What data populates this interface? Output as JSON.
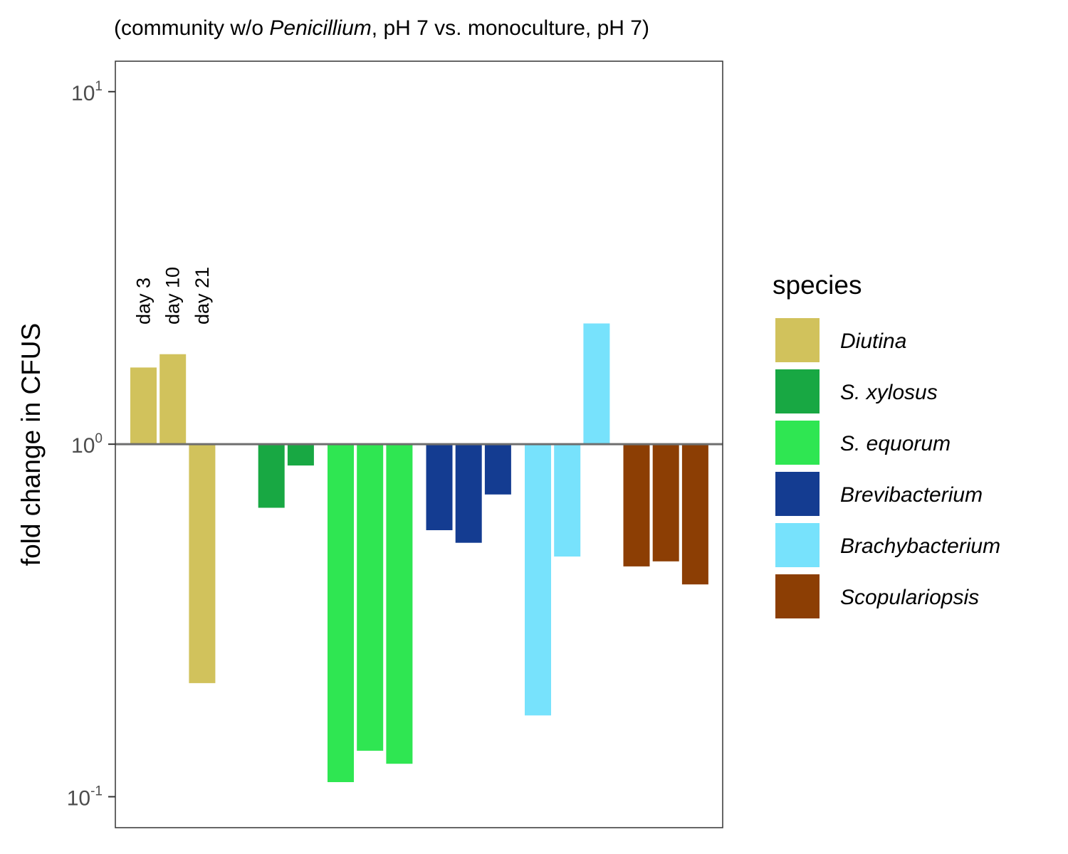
{
  "chart_data": {
    "type": "bar",
    "subtitle_parts": [
      {
        "text": "(community w/o ",
        "italic": false
      },
      {
        "text": "Penicillium",
        "italic": true
      },
      {
        "text": ", pH 7 vs. monoculture, pH 7)",
        "italic": false
      }
    ],
    "ylabel": "fold change in CFUS",
    "yscale": "log10",
    "ylim": [
      0.0817,
      12.2
    ],
    "baseline": 1,
    "yticks": [
      {
        "value": 0.1,
        "base": "10",
        "exp": "-1"
      },
      {
        "value": 1,
        "base": "10",
        "exp": "0"
      },
      {
        "value": 10,
        "base": "10",
        "exp": "1"
      }
    ],
    "timepoints": [
      "day 3",
      "day 10",
      "day 21"
    ],
    "grid": false,
    "legend": {
      "title": "species",
      "position": "right"
    },
    "series": [
      {
        "name": "Diutina",
        "color": "#D1C25C",
        "values": [
          1.65,
          1.8,
          0.21
        ]
      },
      {
        "name": "S. xylosus",
        "color": "#18A843",
        "values": [
          null,
          0.66,
          0.87
        ]
      },
      {
        "name": "S. equorum",
        "color": "#2FE652",
        "values": [
          0.11,
          0.135,
          0.124
        ]
      },
      {
        "name": "Brevibacterium",
        "color": "#143C91",
        "values": [
          0.57,
          0.525,
          0.72
        ]
      },
      {
        "name": "Brachybacterium",
        "color": "#77E2FC",
        "values": [
          0.17,
          0.48,
          2.2
        ]
      },
      {
        "name": "Scopulariopsis",
        "color": "#8C3E04",
        "values": [
          0.45,
          0.465,
          0.4
        ]
      }
    ]
  }
}
